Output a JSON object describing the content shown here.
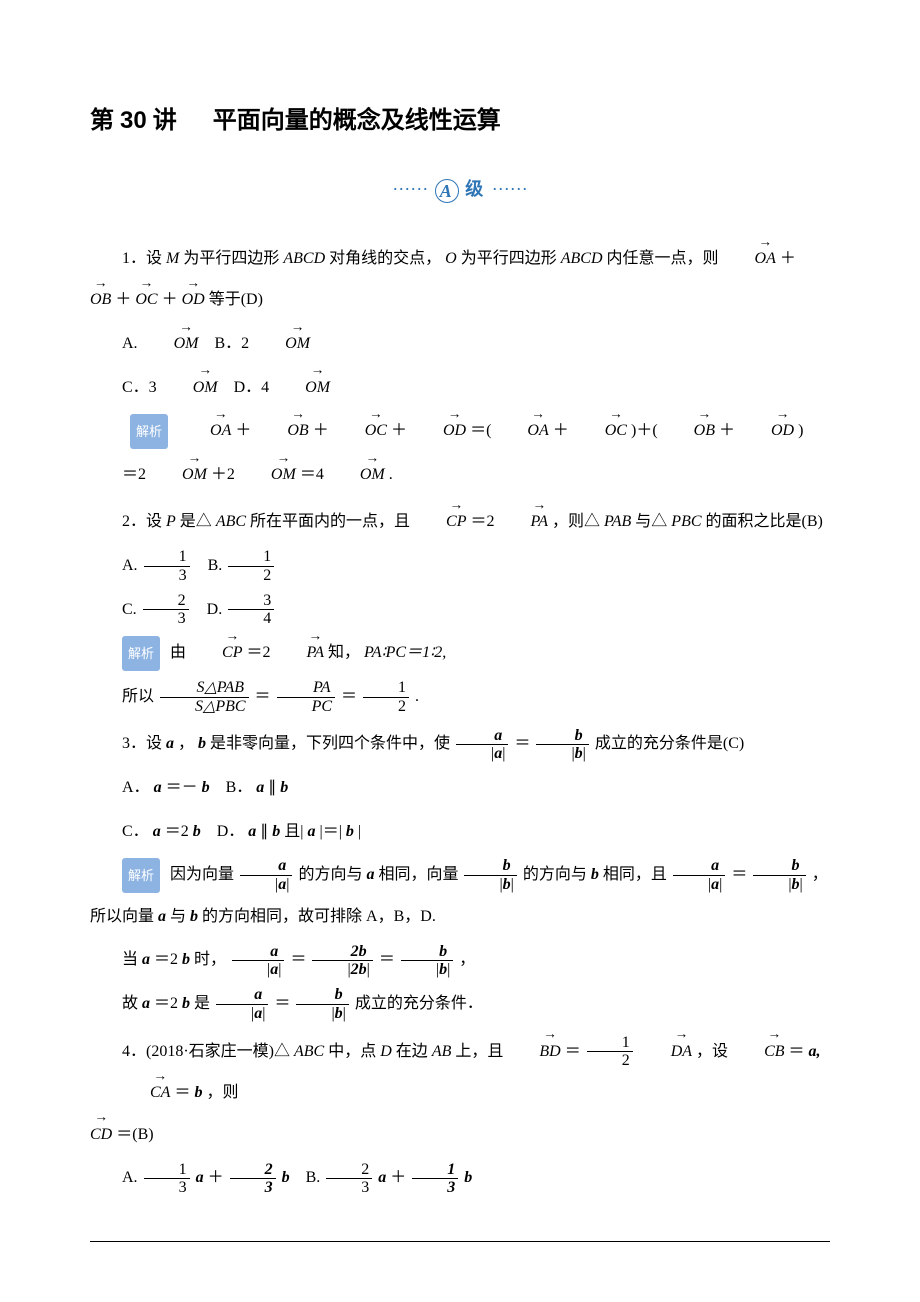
{
  "title_prefix": "第",
  "title_number": "30",
  "title_word": "讲",
  "title_topic": "平面向量的概念及线性运算",
  "level_letter": "A",
  "level_word": "级",
  "q1": {
    "prefix": "1．设",
    "M": "M",
    "t1": "为平行四边形",
    "ABCD": "ABCD",
    "t2": "对角线的交点，",
    "O": "O",
    "t3": "为平行四边形",
    "t4": "内任意一点，则",
    "plus": "＋",
    "eq": "等于(D)",
    "OA": "OA",
    "OB": "OB",
    "OC": "OC",
    "OD": "OD",
    "OM": "OM",
    "optA": "A.",
    "optB": "B．2",
    "optC": "C．3",
    "optD": "D．4",
    "tag": "解析",
    "eq1a": "＋",
    "eq1b": "＝(",
    "eq1c": ")＋(",
    "eq1d": ")",
    "eq2a": "＝2",
    "eq2b": "＋2",
    "eq2c": "＝4",
    "eq2d": "."
  },
  "q2": {
    "prefix": "2．设",
    "P": "P",
    "t1": "是△",
    "ABC": "ABC",
    "t2": "所在平面内的一点，且",
    "CP": "CP",
    "eq": "＝2",
    "PA": "PA",
    "t3": "，则△",
    "PAB": "PAB",
    "t4": "与△",
    "PBC": "PBC",
    "t5": "的面积之比是(B)",
    "A": "A.",
    "B": "B.",
    "C": "C.",
    "D": "D.",
    "f1n": "1",
    "f1d": "3",
    "f2n": "1",
    "f2d": "2",
    "f3n": "2",
    "f3d": "3",
    "f4n": "3",
    "f4d": "4",
    "tag": "解析",
    "s1": "由",
    "s2": "知，",
    "s3": "PA∶PC＝1∶2,",
    "s4": "所以",
    "sfracN": "S△PAB",
    "sfracD": "S△PBC",
    "s5": "＝",
    "pfracN": "PA",
    "pfracD": "PC",
    "s6": "＝",
    "hfracN": "1",
    "hfracD": "2",
    "s7": "."
  },
  "q3": {
    "prefix": "3．设",
    "a": "a",
    "comma": "，",
    "b": "b",
    "t1": "是非零向量，下列四个条件中，使",
    "eq": "＝",
    "t2": "成立的充分条件是(C)",
    "A": "A．",
    "Aexp": "＝－",
    "B": "B．",
    "Bexp": "∥",
    "C": "C．",
    "Cexp": "＝2",
    "D": "D．",
    "Dexp1": "∥",
    "Dexp2": " 且|",
    "Dexp3": "|＝|",
    "Dexp4": "|",
    "tag": "解析",
    "s1": "因为向量",
    "s2": "的方向与",
    "s3": "相同，向量",
    "s4": "的方向与",
    "s5": "相同，且",
    "s6": "，所以向量",
    "s7": "与",
    "s8": "的方向相同，故可排除 A，B，D.",
    "s9": "当",
    "s10": "＝2",
    "s11": "时，",
    "s12": "＝",
    "s13": "＝",
    "s14": "，",
    "s15": "故",
    "s16": "＝2",
    "s17": "是",
    "s18": "＝",
    "s19": "成立的充分条件．",
    "two_b": "2b"
  },
  "q4": {
    "prefix": "4．(2018·石家庄一模)△",
    "ABC": "ABC",
    "t1": "中，点",
    "D": "D",
    "t2": "在边",
    "AB": "AB",
    "t3": "上，且",
    "BD": "BD",
    "eq": "＝",
    "halfN": "1",
    "halfD": "2",
    "DA": "DA",
    "t4": "，设",
    "CB": "CB",
    "eqa": "＝",
    "a": "a,",
    "CA": "CA",
    "eqb": "＝",
    "b": "b",
    "t5": "，则",
    "CD": "CD",
    "ans": "＝(B)",
    "A": "A.",
    "B": "B.",
    "f1n": "1",
    "f1d": "3",
    "f2n": "2",
    "f2d": "3",
    "plus": "＋",
    "al": "a",
    "bl": "b"
  }
}
